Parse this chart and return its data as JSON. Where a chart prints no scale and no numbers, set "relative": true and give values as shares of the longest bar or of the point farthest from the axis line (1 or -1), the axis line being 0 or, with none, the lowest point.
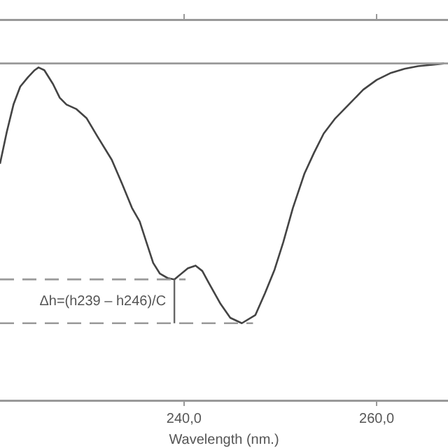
{
  "chart_data": {
    "type": "line",
    "relative": true,
    "xlabel": "Wavelength (nm.)",
    "xlim": [
      220.9,
      267.4
    ],
    "xticks": [
      {
        "value": 240,
        "label": "240,0"
      },
      {
        "value": 260,
        "label": "260,0"
      }
    ],
    "grid": false,
    "legend": false,
    "marker": "none",
    "line_style": "solid",
    "series": [
      {
        "color": "#444444",
        "x": [
          220.9,
          221.6,
          222.3,
          223.0,
          223.8,
          224.5,
          224.9,
          225.5,
          226.4,
          227.1,
          227.8,
          228.8,
          229.9,
          231.0,
          232.5,
          233.6,
          234.6,
          235.4,
          236.1,
          236.8,
          237.5,
          238.3,
          239,
          240.4,
          241.2,
          241.9,
          242.6,
          243.8,
          244.8,
          246,
          247.4,
          248.4,
          249.4,
          250.3,
          251.3,
          252.5,
          253.5,
          254.5,
          255.7,
          257.1,
          258.6,
          260,
          261.4,
          262.9,
          264.3,
          265.8,
          267.0
        ],
        "values": [
          0.702,
          0.796,
          0.878,
          0.931,
          0.959,
          0.98,
          0.988,
          0.98,
          0.939,
          0.898,
          0.878,
          0.865,
          0.837,
          0.784,
          0.714,
          0.641,
          0.571,
          0.531,
          0.469,
          0.408,
          0.376,
          0.363,
          0.359,
          0.392,
          0.4,
          0.384,
          0.347,
          0.286,
          0.245,
          0.229,
          0.253,
          0.318,
          0.388,
          0.469,
          0.571,
          0.673,
          0.735,
          0.792,
          0.837,
          0.878,
          0.922,
          0.951,
          0.971,
          0.984,
          0.992,
          0.996,
          1
        ]
      }
    ],
    "ref_lines": [
      {
        "axis": "y",
        "value": 1,
        "color": "#999999",
        "line_style": "solid"
      },
      {
        "axis": "y",
        "value": 0.359,
        "color": "#999999",
        "line_style": "dashed"
      },
      {
        "axis": "y",
        "value": 0.229,
        "color": "#999999",
        "line_style": "dashed"
      }
    ],
    "annotations": [
      "Δh=(h239 – h246)/C"
    ]
  }
}
